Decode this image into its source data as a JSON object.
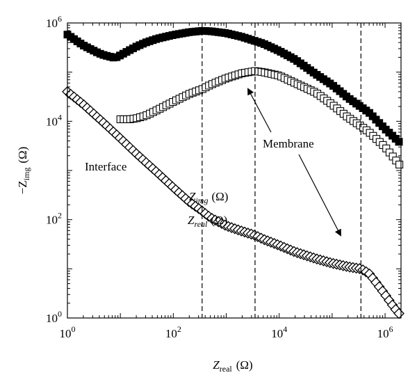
{
  "chart_data": {
    "type": "scatter",
    "x_scale": "log",
    "y_scale": "log",
    "xlim": [
      1,
      2000000
    ],
    "ylim": [
      1,
      1000000
    ],
    "xlabel": {
      "base": "Z",
      "sub": "real",
      "unit": "(Ω)"
    },
    "ylabel": {
      "base": "−Z",
      "sub": "img",
      "unit": "(Ω)"
    },
    "x_ticks": [
      {
        "value": 1,
        "base": "10",
        "exp": "0"
      },
      {
        "value": 100,
        "base": "10",
        "exp": "2"
      },
      {
        "value": 10000,
        "base": "10",
        "exp": "4"
      },
      {
        "value": 1000000,
        "base": "10",
        "exp": "6"
      }
    ],
    "y_ticks": [
      {
        "value": 1,
        "base": "10",
        "exp": "0"
      },
      {
        "value": 100,
        "base": "10",
        "exp": "2"
      },
      {
        "value": 10000,
        "base": "10",
        "exp": "4"
      },
      {
        "value": 1000000,
        "base": "10",
        "exp": "6"
      }
    ],
    "grid": false,
    "legend": "in-plot",
    "legend_labels": [
      {
        "series": "Z_img",
        "base": "Z",
        "sub": "img",
        "unit": "(Ω)",
        "marker": "filled-square"
      },
      {
        "series": "Z_real",
        "base": "Z",
        "sub": "real",
        "unit": "(Ω)",
        "marker": "diamond"
      }
    ],
    "annotations": {
      "interface": "Interface",
      "membrane": "Membrane"
    },
    "vlines": [
      350,
      3500,
      350000
    ],
    "series": [
      {
        "marker": "filled-square",
        "color": "#000000",
        "points": [
          [
            1,
            580000
          ],
          [
            1.5,
            430000
          ],
          [
            2,
            350000
          ],
          [
            3,
            280000
          ],
          [
            4,
            240000
          ],
          [
            5,
            220000
          ],
          [
            6,
            210000
          ],
          [
            7,
            200000
          ],
          [
            8,
            195000
          ],
          [
            10,
            220000
          ],
          [
            15,
            280000
          ],
          [
            20,
            330000
          ],
          [
            30,
            400000
          ],
          [
            50,
            480000
          ],
          [
            100,
            570000
          ],
          [
            200,
            650000
          ],
          [
            350,
            690000
          ],
          [
            500,
            680000
          ],
          [
            1000,
            620000
          ],
          [
            2000,
            520000
          ],
          [
            5000,
            380000
          ],
          [
            10000,
            270000
          ],
          [
            20000,
            180000
          ],
          [
            50000,
            90000
          ],
          [
            100000,
            55000
          ],
          [
            200000,
            30000
          ],
          [
            500000,
            15000
          ],
          [
            1000000,
            7000
          ],
          [
            2000000,
            3500
          ]
        ]
      },
      {
        "marker": "square",
        "color": "#000000",
        "points": [
          [
            10,
            11000
          ],
          [
            15,
            11000
          ],
          [
            20,
            11500
          ],
          [
            30,
            13000
          ],
          [
            50,
            17000
          ],
          [
            100,
            25000
          ],
          [
            200,
            36000
          ],
          [
            350,
            45000
          ],
          [
            500,
            55000
          ],
          [
            1000,
            75000
          ],
          [
            2000,
            95000
          ],
          [
            3500,
            105000
          ],
          [
            5000,
            100000
          ],
          [
            10000,
            85000
          ],
          [
            20000,
            60000
          ],
          [
            50000,
            38000
          ],
          [
            100000,
            22000
          ],
          [
            200000,
            12000
          ],
          [
            350000,
            8000
          ],
          [
            500000,
            6000
          ],
          [
            1000000,
            3000
          ],
          [
            2000000,
            1200
          ]
        ]
      },
      {
        "marker": "diamond",
        "color": "#000000",
        "points": [
          [
            1,
            40000
          ],
          [
            2,
            22000
          ],
          [
            5,
            9000
          ],
          [
            10,
            4500
          ],
          [
            20,
            2200
          ],
          [
            50,
            900
          ],
          [
            100,
            450
          ],
          [
            200,
            230
          ],
          [
            350,
            150
          ],
          [
            500,
            110
          ],
          [
            1000,
            75
          ],
          [
            2000,
            58
          ],
          [
            3500,
            48
          ],
          [
            5000,
            40
          ],
          [
            10000,
            30
          ],
          [
            20000,
            22
          ],
          [
            50000,
            16
          ],
          [
            100000,
            13
          ],
          [
            200000,
            11
          ],
          [
            350000,
            10
          ],
          [
            500000,
            8
          ],
          [
            700000,
            5
          ],
          [
            1000000,
            3
          ],
          [
            1500000,
            1.6
          ],
          [
            2000000,
            1.1
          ]
        ]
      }
    ]
  }
}
